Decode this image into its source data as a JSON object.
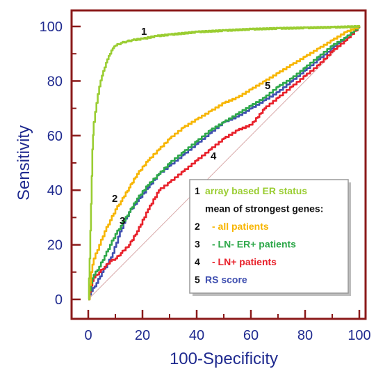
{
  "chart_data": {
    "type": "line",
    "xlabel": "100-Specificity",
    "ylabel": "Sensitivity",
    "xlim": [
      0,
      100
    ],
    "ylim": [
      0,
      100
    ],
    "x_ticks": [
      "0",
      "20",
      "40",
      "60",
      "80",
      "100"
    ],
    "y_ticks": [
      "0",
      "20",
      "40",
      "60",
      "80",
      "100"
    ],
    "grid": false,
    "frame_color": "#8b1a1a",
    "legend_placement": "lower-right",
    "diagonal_reference": true,
    "diagonal_color": "#d8a8a8",
    "series": [
      {
        "label_number": "1",
        "color": "#9acd32",
        "points": [
          [
            0,
            0
          ],
          [
            0.5,
            15
          ],
          [
            1,
            35
          ],
          [
            1.5,
            55
          ],
          [
            2,
            65
          ],
          [
            3,
            72
          ],
          [
            4,
            78
          ],
          [
            5,
            82
          ],
          [
            6,
            85
          ],
          [
            7,
            88
          ],
          [
            8,
            90
          ],
          [
            9,
            92
          ],
          [
            10,
            93
          ],
          [
            12,
            94
          ],
          [
            14,
            94.5
          ],
          [
            16,
            95
          ],
          [
            20,
            95.5
          ],
          [
            25,
            96.5
          ],
          [
            30,
            97
          ],
          [
            40,
            98
          ],
          [
            50,
            98.5
          ],
          [
            60,
            99
          ],
          [
            70,
            99.3
          ],
          [
            80,
            99.5
          ],
          [
            90,
            99.7
          ],
          [
            100,
            100
          ]
        ]
      },
      {
        "label_number": "2",
        "color": "#f7b500",
        "points": [
          [
            0,
            0
          ],
          [
            1,
            10
          ],
          [
            2,
            15
          ],
          [
            4,
            20
          ],
          [
            6,
            25
          ],
          [
            8,
            29
          ],
          [
            10,
            33
          ],
          [
            12,
            36
          ],
          [
            15,
            41
          ],
          [
            18,
            46
          ],
          [
            22,
            51
          ],
          [
            26,
            55
          ],
          [
            30,
            59
          ],
          [
            35,
            63
          ],
          [
            40,
            66
          ],
          [
            45,
            69
          ],
          [
            50,
            72
          ],
          [
            55,
            74
          ],
          [
            60,
            77
          ],
          [
            65,
            80
          ],
          [
            70,
            83
          ],
          [
            75,
            86
          ],
          [
            80,
            89
          ],
          [
            85,
            92
          ],
          [
            90,
            95
          ],
          [
            95,
            98
          ],
          [
            100,
            100
          ]
        ]
      },
      {
        "label_number": "3",
        "color": "#2ea84a",
        "points": [
          [
            0,
            0
          ],
          [
            1,
            6
          ],
          [
            2,
            9
          ],
          [
            4,
            12
          ],
          [
            6,
            16
          ],
          [
            8,
            20
          ],
          [
            10,
            24
          ],
          [
            12,
            27
          ],
          [
            15,
            32
          ],
          [
            18,
            37
          ],
          [
            22,
            42
          ],
          [
            26,
            46
          ],
          [
            30,
            50
          ],
          [
            35,
            54
          ],
          [
            40,
            58
          ],
          [
            45,
            62
          ],
          [
            50,
            65
          ],
          [
            55,
            68
          ],
          [
            60,
            71
          ],
          [
            65,
            74
          ],
          [
            70,
            78
          ],
          [
            75,
            81
          ],
          [
            80,
            85
          ],
          [
            85,
            89
          ],
          [
            90,
            93
          ],
          [
            95,
            96
          ],
          [
            100,
            100
          ]
        ]
      },
      {
        "label_number": "4",
        "color": "#e8202a",
        "points": [
          [
            0,
            0
          ],
          [
            1,
            5
          ],
          [
            2,
            8
          ],
          [
            4,
            10
          ],
          [
            6,
            12
          ],
          [
            8,
            14
          ],
          [
            10,
            15
          ],
          [
            12,
            17
          ],
          [
            15,
            20
          ],
          [
            18,
            25
          ],
          [
            22,
            33
          ],
          [
            26,
            40
          ],
          [
            30,
            43
          ],
          [
            35,
            47
          ],
          [
            40,
            51
          ],
          [
            45,
            55
          ],
          [
            50,
            59
          ],
          [
            55,
            62
          ],
          [
            60,
            64
          ],
          [
            65,
            70
          ],
          [
            70,
            74
          ],
          [
            75,
            78
          ],
          [
            80,
            82
          ],
          [
            85,
            86
          ],
          [
            90,
            91
          ],
          [
            95,
            95
          ],
          [
            100,
            100
          ]
        ]
      },
      {
        "label_number": "5",
        "color": "#3f4fb0",
        "points": [
          [
            0,
            0
          ],
          [
            1,
            3
          ],
          [
            3,
            6
          ],
          [
            5,
            10
          ],
          [
            7,
            13
          ],
          [
            9,
            17
          ],
          [
            11,
            23
          ],
          [
            13,
            28
          ],
          [
            15,
            32
          ],
          [
            18,
            36
          ],
          [
            22,
            41
          ],
          [
            26,
            46
          ],
          [
            30,
            49
          ],
          [
            35,
            53
          ],
          [
            40,
            57
          ],
          [
            45,
            61
          ],
          [
            50,
            65
          ],
          [
            55,
            67
          ],
          [
            60,
            70
          ],
          [
            65,
            73
          ],
          [
            70,
            76
          ],
          [
            75,
            80
          ],
          [
            80,
            84
          ],
          [
            85,
            88
          ],
          [
            90,
            92
          ],
          [
            95,
            96
          ],
          [
            100,
            100
          ]
        ]
      }
    ],
    "legend": {
      "lines": [
        {
          "number": "1",
          "text": "array based ER status",
          "color": "#9acd32"
        },
        {
          "number": "",
          "text": "mean of strongest genes:",
          "color": "#111111"
        },
        {
          "number": "2",
          "text": "- all patients",
          "color": "#f7b500"
        },
        {
          "number": "3",
          "text": "- LN- ER+ patients",
          "color": "#2ea84a"
        },
        {
          "number": "4",
          "text": "- LN+ patients",
          "color": "#e8202a"
        },
        {
          "number": "5",
          "text": "RS score",
          "color": "#3f4fb0"
        }
      ]
    }
  }
}
